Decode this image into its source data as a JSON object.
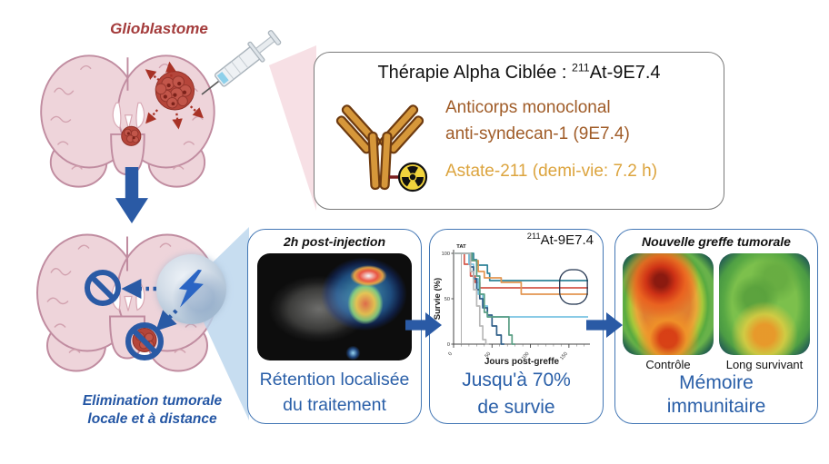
{
  "colors": {
    "accent_blue": "#2a5aa5",
    "panel_border": "#4276b4",
    "caption_blue": "#2a5fa8",
    "glioblastome_red": "#a43c3c",
    "antibody_brown": "#a05c28",
    "astate_gold": "#dca43e",
    "brain_fill": "#eed4da",
    "brain_stroke": "#c08ca0",
    "tumor_red": "#b5453a"
  },
  "top_left": {
    "label": "Glioblastome"
  },
  "therapy_box": {
    "title_prefix": "Thérapie Alpha Ciblée : ",
    "isotope_sup": "211",
    "isotope_rest": "At-9E7.4",
    "antibody_line1": "Anticorps monoclonal",
    "antibody_line2": "anti-syndecan-1 (9E7.4)",
    "astate_line": "Astate-211 (demi-vie: 7.2 h)"
  },
  "bottom_left": {
    "caption_line1": "Elimination tumorale",
    "caption_line2": "locale et à distance"
  },
  "retention_panel": {
    "header": "2h post-injection",
    "caption_line1": "Rétention localisée",
    "caption_line2": "du traitement"
  },
  "survival_panel": {
    "annotation_sup": "211",
    "annotation_rest": "At-9E7.4",
    "caption_line1": "Jusqu'à 70%",
    "caption_line2": "de survie"
  },
  "memory_panel": {
    "header": "Nouvelle greffe tumorale",
    "image1_label": "Contrôle",
    "image2_label": "Long survivant",
    "caption_line1": "Mémoire",
    "caption_line2": "immunitaire"
  },
  "chart_data": {
    "type": "line",
    "subtype": "kaplan-meier-step",
    "title": "211At-9E7.4",
    "xlabel": "Jours post-greffe",
    "ylabel": "Survie (%)",
    "xlim": [
      0,
      175
    ],
    "ylim": [
      0,
      100
    ],
    "xticks": [
      0,
      50,
      100,
      150
    ],
    "yticks": [
      0,
      50,
      100
    ],
    "xminor_step": 10,
    "tat_marker": {
      "label": "TAT",
      "x": 10
    },
    "annotation_box": {
      "x0": 138,
      "x1": 174,
      "y0": 44,
      "y1": 82
    },
    "series": [
      {
        "name": "treated-teal",
        "color": "#2e8298",
        "points": [
          [
            0,
            100
          ],
          [
            26,
            100
          ],
          [
            26,
            93
          ],
          [
            30,
            93
          ],
          [
            30,
            87
          ],
          [
            44,
            87
          ],
          [
            44,
            78
          ],
          [
            47,
            78
          ],
          [
            47,
            70
          ],
          [
            175,
            70
          ]
        ]
      },
      {
        "name": "treated-red",
        "color": "#d4574a",
        "points": [
          [
            0,
            100
          ],
          [
            14,
            100
          ],
          [
            14,
            88
          ],
          [
            22,
            88
          ],
          [
            22,
            75
          ],
          [
            28,
            75
          ],
          [
            28,
            68
          ],
          [
            34,
            68
          ],
          [
            34,
            62
          ],
          [
            175,
            62
          ]
        ]
      },
      {
        "name": "treated-orange",
        "color": "#e29550",
        "points": [
          [
            0,
            100
          ],
          [
            20,
            100
          ],
          [
            20,
            92
          ],
          [
            32,
            92
          ],
          [
            32,
            80
          ],
          [
            40,
            80
          ],
          [
            40,
            73
          ],
          [
            62,
            73
          ],
          [
            62,
            68
          ],
          [
            88,
            68
          ],
          [
            88,
            55
          ],
          [
            175,
            55
          ]
        ]
      },
      {
        "name": "comparison-lightcyan",
        "color": "#79c4e2",
        "points": [
          [
            0,
            100
          ],
          [
            20,
            100
          ],
          [
            20,
            88
          ],
          [
            26,
            88
          ],
          [
            26,
            72
          ],
          [
            32,
            72
          ],
          [
            32,
            55
          ],
          [
            38,
            55
          ],
          [
            38,
            42
          ],
          [
            44,
            42
          ],
          [
            44,
            30
          ],
          [
            175,
            30
          ]
        ]
      },
      {
        "name": "control-navy",
        "color": "#2f5e88",
        "points": [
          [
            0,
            100
          ],
          [
            22,
            100
          ],
          [
            22,
            85
          ],
          [
            26,
            85
          ],
          [
            26,
            72
          ],
          [
            30,
            72
          ],
          [
            30,
            60
          ],
          [
            34,
            60
          ],
          [
            34,
            50
          ],
          [
            38,
            50
          ],
          [
            38,
            40
          ],
          [
            44,
            40
          ],
          [
            44,
            32
          ],
          [
            50,
            32
          ],
          [
            50,
            20
          ],
          [
            56,
            20
          ],
          [
            56,
            10
          ],
          [
            62,
            10
          ],
          [
            62,
            0
          ],
          [
            66,
            0
          ]
        ]
      },
      {
        "name": "control-green",
        "color": "#5a9e84",
        "points": [
          [
            0,
            100
          ],
          [
            24,
            100
          ],
          [
            24,
            92
          ],
          [
            30,
            92
          ],
          [
            30,
            75
          ],
          [
            34,
            75
          ],
          [
            34,
            55
          ],
          [
            40,
            55
          ],
          [
            40,
            35
          ],
          [
            44,
            35
          ],
          [
            44,
            30
          ],
          [
            72,
            30
          ],
          [
            72,
            10
          ],
          [
            76,
            10
          ],
          [
            76,
            0
          ],
          [
            80,
            0
          ]
        ]
      },
      {
        "name": "control-gray",
        "color": "#b8b8b8",
        "points": [
          [
            0,
            100
          ],
          [
            22,
            100
          ],
          [
            22,
            80
          ],
          [
            26,
            80
          ],
          [
            26,
            60
          ],
          [
            30,
            60
          ],
          [
            30,
            42
          ],
          [
            34,
            42
          ],
          [
            34,
            20
          ],
          [
            38,
            20
          ],
          [
            38,
            5
          ],
          [
            42,
            5
          ],
          [
            42,
            0
          ],
          [
            46,
            0
          ]
        ]
      }
    ]
  }
}
